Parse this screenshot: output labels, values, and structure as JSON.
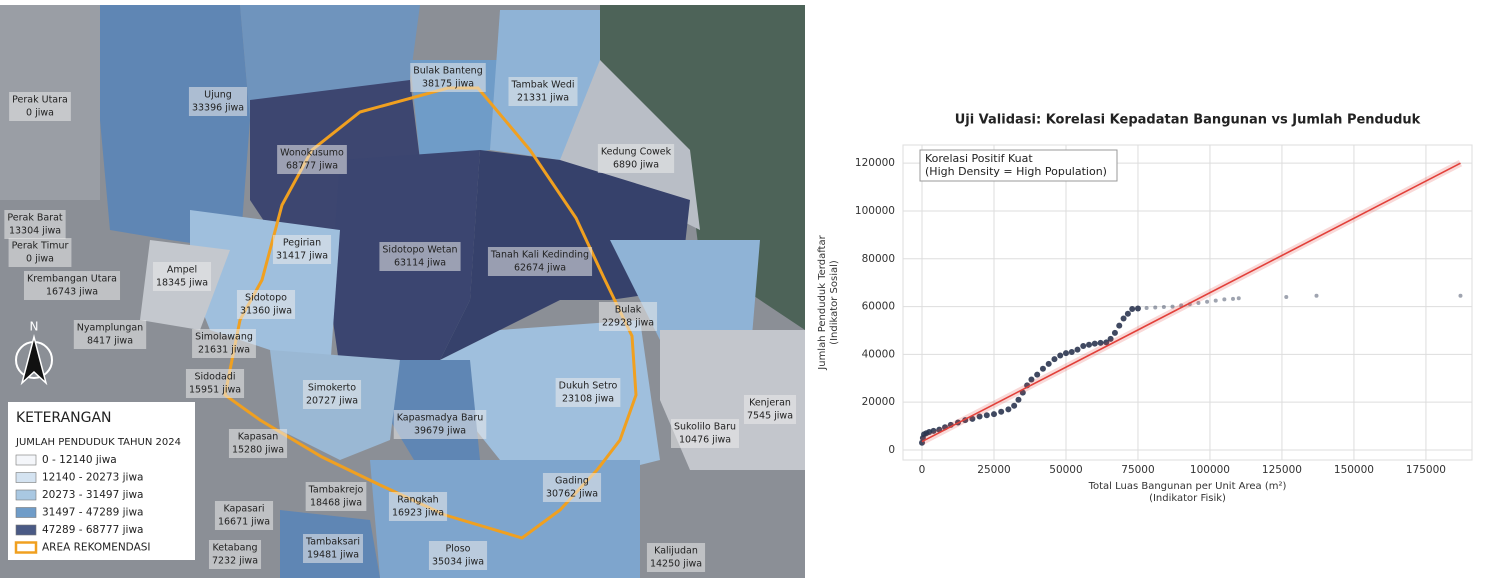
{
  "map": {
    "regions": [
      {
        "name": "Perak Utara",
        "population": "0 jiwa"
      },
      {
        "name": "Ujung",
        "population": "33396 jiwa"
      },
      {
        "name": "Bulak Banteng",
        "population": "38175 jiwa"
      },
      {
        "name": "Tambak Wedi",
        "population": "21331 jiwa"
      },
      {
        "name": "Wonokusumo",
        "population": "68777 jiwa"
      },
      {
        "name": "Kedung Cowek",
        "population": "6890 jiwa"
      },
      {
        "name": "Perak Barat",
        "population": "13304 jiwa"
      },
      {
        "name": "Perak Timur",
        "population": "0 jiwa"
      },
      {
        "name": "Pegirian",
        "population": "31417 jiwa"
      },
      {
        "name": "Sidotopo Wetan",
        "population": "63114 jiwa"
      },
      {
        "name": "Tanah Kali Kedinding",
        "population": "62674 jiwa"
      },
      {
        "name": "Krembangan Utara",
        "population": "16743 jiwa"
      },
      {
        "name": "Ampel",
        "population": "18345 jiwa"
      },
      {
        "name": "Sidotopo",
        "population": "31360 jiwa"
      },
      {
        "name": "Bulak",
        "population": "22928 jiwa"
      },
      {
        "name": "Nyamplungan",
        "population": "8417 jiwa"
      },
      {
        "name": "Simolawang",
        "population": "21631 jiwa"
      },
      {
        "name": "Sidodadi",
        "population": "15951 jiwa"
      },
      {
        "name": "Simokerto",
        "population": "20727 jiwa"
      },
      {
        "name": "Dukuh Setro",
        "population": "23108 jiwa"
      },
      {
        "name": "Kenjeran",
        "population": "7545 jiwa"
      },
      {
        "name": "Kapasmadya Baru",
        "population": "39679 jiwa"
      },
      {
        "name": "Sukolilo Baru",
        "population": "10476 jiwa"
      },
      {
        "name": "Kapasan",
        "population": "15280 jiwa"
      },
      {
        "name": "Gading",
        "population": "30762 jiwa"
      },
      {
        "name": "Tambakrejo",
        "population": "18468 jiwa"
      },
      {
        "name": "Rangkah",
        "population": "16923 jiwa"
      },
      {
        "name": "Kapasari",
        "population": "16671 jiwa"
      },
      {
        "name": "Ketabang",
        "population": "7232 jiwa"
      },
      {
        "name": "Tambaksari",
        "population": "19481 jiwa"
      },
      {
        "name": "Ploso",
        "population": "35034 jiwa"
      },
      {
        "name": "Kalijudan",
        "population": "14250 jiwa"
      }
    ],
    "north": "N",
    "legend": {
      "title": "KETERANGAN",
      "subtitle": "JUMLAH PENDUDUK TAHUN 2024",
      "items": [
        {
          "label": "0 - 12140 jiwa",
          "color": "#f4f6fa"
        },
        {
          "label": "12140 - 20273 jiwa",
          "color": "#d4e3f1"
        },
        {
          "label": "20273 - 31497 jiwa",
          "color": "#a9c8e2"
        },
        {
          "label": "31497 - 47289 jiwa",
          "color": "#6f9cc8"
        },
        {
          "label": "47289 - 68777 jiwa",
          "color": "#4a5a85"
        },
        {
          "label": "AREA REKOMENDASI",
          "color": "#f0a020"
        }
      ]
    }
  },
  "chart_data": {
    "type": "scatter",
    "title": "Uji Validasi: Korelasi Kepadatan Bangunan vs Jumlah Penduduk",
    "annotation": [
      "Korelasi Positif Kuat",
      "(High Density = High Population)"
    ],
    "xlabel": [
      "Total Luas Bangunan per Unit Area (m²)",
      "(Indikator Fisik)"
    ],
    "ylabel": [
      "Jumlah Penduduk Terdaftar",
      "(Indikator Sosial)"
    ],
    "color": "#2b3550",
    "x": [
      0,
      300,
      700,
      1500,
      2500,
      4000,
      6000,
      8000,
      10000,
      12500,
      15000,
      17500,
      20000,
      22500,
      25000,
      27500,
      30000,
      32000,
      33500,
      35000,
      36500,
      38000,
      40000,
      42000,
      44000,
      46000,
      48000,
      50000,
      52000,
      54000,
      56000,
      58000,
      60000,
      62000,
      64000,
      65500,
      67000,
      68500,
      70000,
      71500,
      73000,
      75000,
      78000,
      81000,
      84000,
      87000,
      90000,
      93000,
      96000,
      99000,
      102000,
      105000,
      108000,
      110000,
      126500,
      137000,
      187000
    ],
    "y": [
      3000,
      5000,
      6500,
      7000,
      7500,
      8000,
      8500,
      9500,
      10500,
      11500,
      12500,
      13000,
      14000,
      14500,
      15000,
      16000,
      17000,
      18500,
      21000,
      24000,
      27000,
      29500,
      31500,
      34000,
      36000,
      38000,
      39500,
      40500,
      41000,
      42000,
      43500,
      44000,
      44500,
      44800,
      45000,
      46500,
      49000,
      52000,
      55000,
      57000,
      59000,
      59200,
      59400,
      59600,
      59800,
      60000,
      60500,
      61000,
      61500,
      62000,
      62500,
      63000,
      63200,
      63500,
      64000,
      64500,
      64500
    ],
    "fit": {
      "color": "#e2403a",
      "x": [
        0,
        187000
      ],
      "y": [
        3500,
        120000
      ]
    },
    "xlim": [
      -6600,
      191000
    ],
    "ylim": [
      -4200,
      127600
    ],
    "xticks": [
      0,
      25000,
      50000,
      75000,
      100000,
      125000,
      150000,
      175000
    ],
    "yticks": [
      0,
      20000,
      40000,
      60000,
      80000,
      100000,
      120000
    ],
    "grid": true
  }
}
